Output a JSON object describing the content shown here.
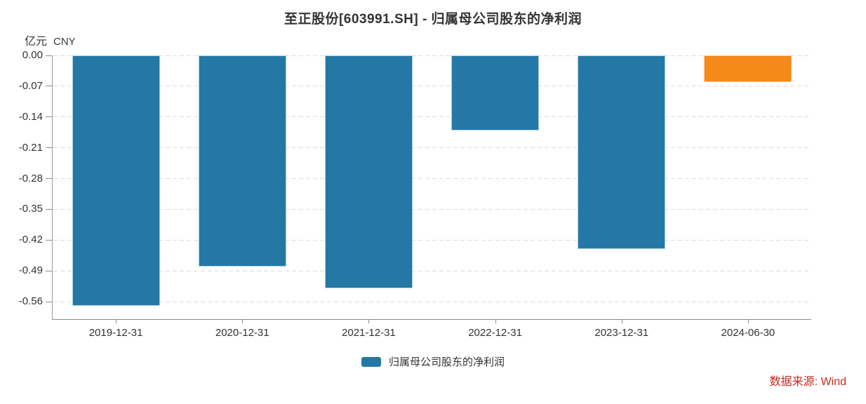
{
  "title": "至正股份[603991.SH] - 归属母公司股东的净利润",
  "unit": {
    "left": "亿元",
    "right": "CNY"
  },
  "legend": {
    "label": "归属母公司股东的净利润"
  },
  "source": {
    "label": "数据来源: Wind",
    "color": "#C5281C"
  },
  "colors": {
    "bar_blue": "#2478A6",
    "bar_blue_edge": "#a9cede",
    "bar_orange": "#F5891A",
    "bar_orange_edge": "#f8c98e",
    "grid": "#dcdcdc",
    "axis": "#8c8c8c",
    "text": "#333333",
    "source_red": "#C5281C"
  },
  "chart_data": {
    "type": "bar",
    "title": "至正股份[603991.SH] - 归属母公司股东的净利润",
    "ylabel": "亿元 CNY",
    "categories": [
      "2019-12-31",
      "2020-12-31",
      "2021-12-31",
      "2022-12-31",
      "2023-12-31",
      "2024-06-30"
    ],
    "series": [
      {
        "name": "归属母公司股东的净利润",
        "values": [
          -0.57,
          -0.48,
          -0.53,
          -0.17,
          -0.44,
          -0.06
        ]
      }
    ],
    "bar_colors": [
      "#2478A6",
      "#2478A6",
      "#2478A6",
      "#2478A6",
      "#2478A6",
      "#F5891A"
    ],
    "bar_edge_colors": [
      "#a9cede",
      "#a9cede",
      "#a9cede",
      "#a9cede",
      "#a9cede",
      "#f8c98e"
    ],
    "ytick_labels": [
      "0.00",
      "-0.07",
      "-0.14",
      "-0.21",
      "-0.28",
      "-0.35",
      "-0.42",
      "-0.49",
      "-0.56"
    ],
    "ytick_step": 0.07,
    "ylim": [
      -0.6,
      0
    ],
    "grid": "horizontal-dashed",
    "legend_position": "bottom",
    "source_note": "数据来源: Wind"
  }
}
